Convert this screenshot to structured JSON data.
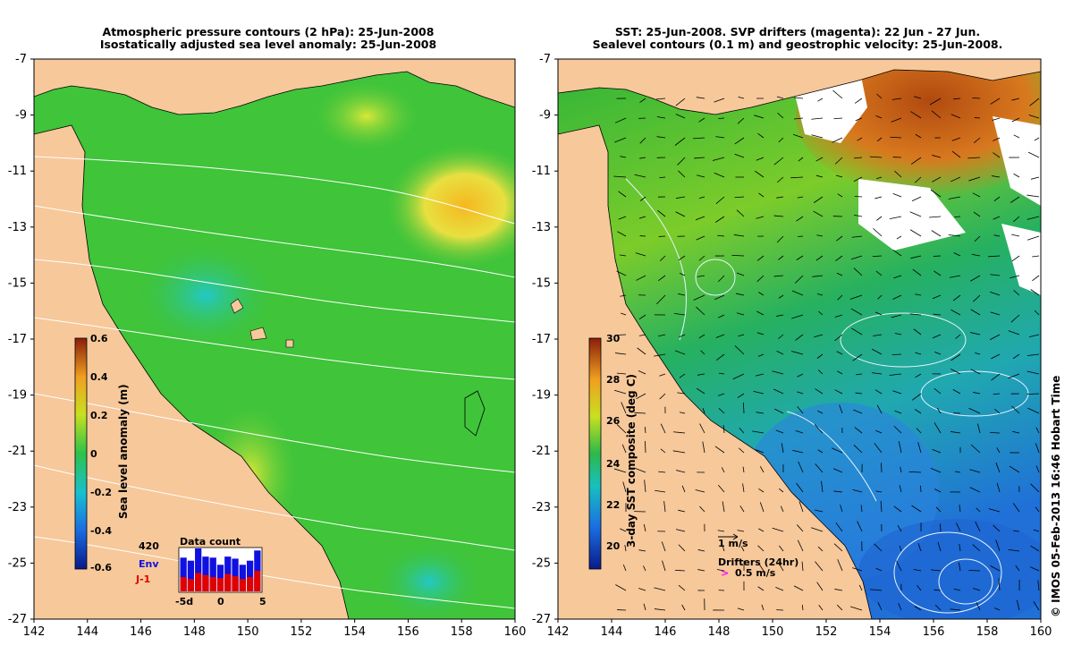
{
  "left_panel": {
    "title_line1": "Atmospheric pressure contours (2 hPa): 25-Jun-2008",
    "title_line2": "Isostatically adjusted sea level anomaly: 25-Jun-2008",
    "colorbar_label": "Sea level anomaly (m)",
    "colorbar_ticks": [
      "0.6",
      "0.4",
      "0.2",
      "0",
      "-0.2",
      "-0.4",
      "-0.6"
    ],
    "inset": {
      "title": "Data count",
      "max_count": "420",
      "series": [
        {
          "name": "Env",
          "color": "#1010e0"
        },
        {
          "name": "J-1",
          "color": "#e00000"
        }
      ],
      "x_ticks": [
        "-5d",
        "0",
        "5"
      ],
      "chart_data": {
        "type": "bar",
        "title": "Data count",
        "categories": [
          "-5",
          "-4",
          "-3",
          "-2",
          "-1",
          "0",
          "1",
          "2",
          "3",
          "4",
          "5"
        ],
        "series": [
          {
            "name": "Env",
            "values": [
              330,
              300,
              420,
              340,
              330,
              260,
              340,
              320,
              260,
              300,
              400
            ]
          },
          {
            "name": "J-1",
            "values": [
              140,
              120,
              180,
              160,
              140,
              130,
              170,
              150,
              120,
              140,
              200
            ]
          }
        ],
        "ylim": [
          0,
          420
        ]
      }
    }
  },
  "right_panel": {
    "title_line1": "SST: 25-Jun-2008. SVP drifters (magenta): 22 Jun - 27 Jun.",
    "title_line2": "Sealevel contours (0.1 m) and geostrophic velocity: 25-Jun-2008.",
    "colorbar_label": "3-day SST composite (deg C)",
    "colorbar_ticks": [
      "30",
      "28",
      "26",
      "24",
      "22",
      "20"
    ],
    "velocity_key": "1 m/s",
    "drifter_key_title": "Drifters (24hr)",
    "drifter_key_value": "0.5 m/s",
    "drifter_key_symbol": ">"
  },
  "axes": {
    "x_ticks": [
      "142",
      "144",
      "146",
      "148",
      "150",
      "152",
      "154",
      "156",
      "158",
      "160"
    ],
    "y_ticks": [
      "-7",
      "-9",
      "-11",
      "-13",
      "-15",
      "-17",
      "-19",
      "-21",
      "-23",
      "-25",
      "-27"
    ]
  },
  "credit": "© IMOS 05-Feb-2013 16:46 Hobart Time",
  "colors": {
    "land": "#f6c89a",
    "sla_ocean": "#3fc43a",
    "sst_warm": "#c8641e",
    "sst_mid": "#2fb34a",
    "sst_cool": "#2aa0d8",
    "drifter": "#ff00ff"
  }
}
